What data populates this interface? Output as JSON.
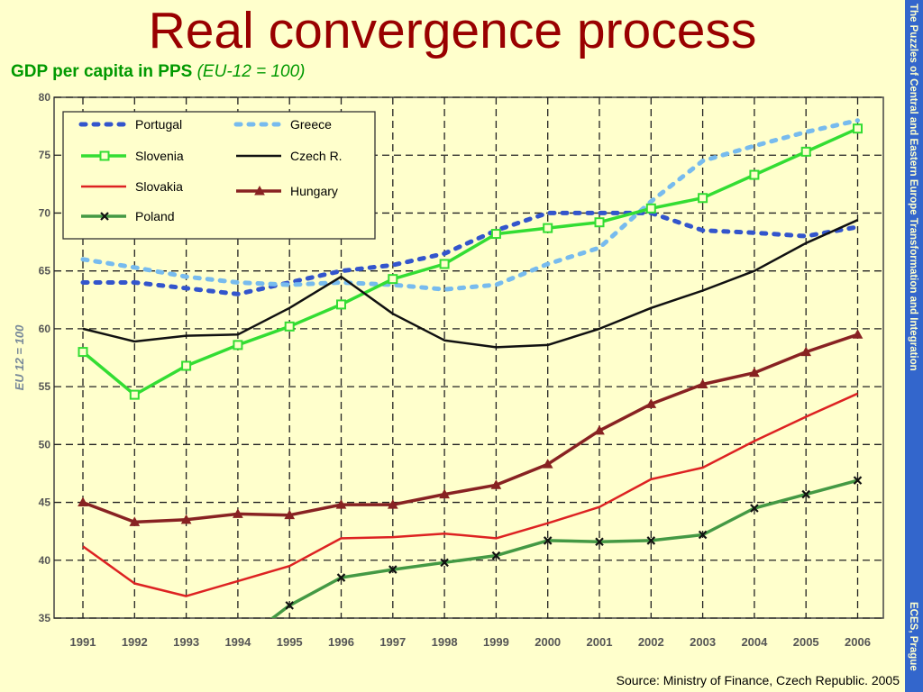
{
  "slide": {
    "title": "Real convergence process",
    "subtitle": "GDP per capita in PPS",
    "subtitle_note": "(EU-12 = 100)",
    "source": "Source: Ministry of Finance, Czech Republic. 2005",
    "sidebar_top": "The Puzzles of Central and Eastern Europe Transformation and Integration",
    "sidebar_bottom": "ECES, Prague"
  },
  "colors": {
    "background": "#ffffcc",
    "title": "#990000",
    "subtitle": "#009900",
    "sidebar": "#3366cc"
  },
  "chart_data": {
    "type": "line",
    "title": "",
    "xlabel": "",
    "ylabel": "EU 12 = 100",
    "ylim": [
      35,
      80
    ],
    "yticks": [
      35,
      40,
      45,
      50,
      55,
      60,
      65,
      70,
      75,
      80
    ],
    "categories": [
      "1991",
      "1992",
      "1993",
      "1994",
      "1995",
      "1996",
      "1997",
      "1998",
      "1999",
      "2000",
      "2001",
      "2002",
      "2003",
      "2004",
      "2005",
      "2006"
    ],
    "grid": true,
    "legend": "top-left",
    "series": [
      {
        "name": "Portugal",
        "color": "#3355cc",
        "style": "dotted",
        "values": [
          64,
          64,
          63.5,
          63,
          64,
          65,
          65.5,
          66.5,
          68.5,
          70,
          70,
          70,
          68.5,
          68.3,
          68,
          68.8
        ]
      },
      {
        "name": "Greece",
        "color": "#77bbee",
        "style": "dotted",
        "values": [
          66,
          65.3,
          64.5,
          64,
          63.8,
          64,
          63.8,
          63.4,
          63.8,
          65.6,
          67,
          71,
          74.5,
          75.8,
          77,
          78
        ]
      },
      {
        "name": "Slovenia",
        "color": "#33dd33",
        "style": "solid",
        "marker": "square",
        "values": [
          58,
          54.3,
          56.8,
          58.6,
          60.2,
          62.1,
          64.3,
          65.6,
          68.2,
          68.7,
          69.2,
          70.4,
          71.3,
          73.3,
          75.3,
          77.3
        ]
      },
      {
        "name": "Czech R.",
        "color": "#111111",
        "style": "solid",
        "values": [
          60,
          58.9,
          59.4,
          59.5,
          61.8,
          64.5,
          61.3,
          59,
          58.4,
          58.6,
          60,
          61.8,
          63.3,
          65,
          67.4,
          69.4
        ]
      },
      {
        "name": "Slovakia",
        "color": "#dd2222",
        "style": "solid",
        "values": [
          41.2,
          38,
          36.9,
          38.2,
          39.5,
          41.9,
          42,
          42.3,
          41.9,
          43.2,
          44.6,
          47,
          48,
          50.3,
          52.4,
          54.4
        ]
      },
      {
        "name": "Hungary",
        "color": "#882222",
        "style": "solid",
        "marker": "triangle",
        "values": [
          45,
          43.3,
          43.5,
          44,
          43.9,
          44.8,
          44.8,
          45.7,
          46.5,
          48.3,
          51.2,
          53.5,
          55.2,
          56.2,
          58,
          59.5
        ]
      },
      {
        "name": "Poland",
        "color": "#449944",
        "style": "solid",
        "marker": "x",
        "values": [
          null,
          null,
          null,
          null,
          36.1,
          38.5,
          39.2,
          39.8,
          40.4,
          41.7,
          41.6,
          41.7,
          42.2,
          44.5,
          45.7,
          46.9
        ]
      }
    ]
  }
}
